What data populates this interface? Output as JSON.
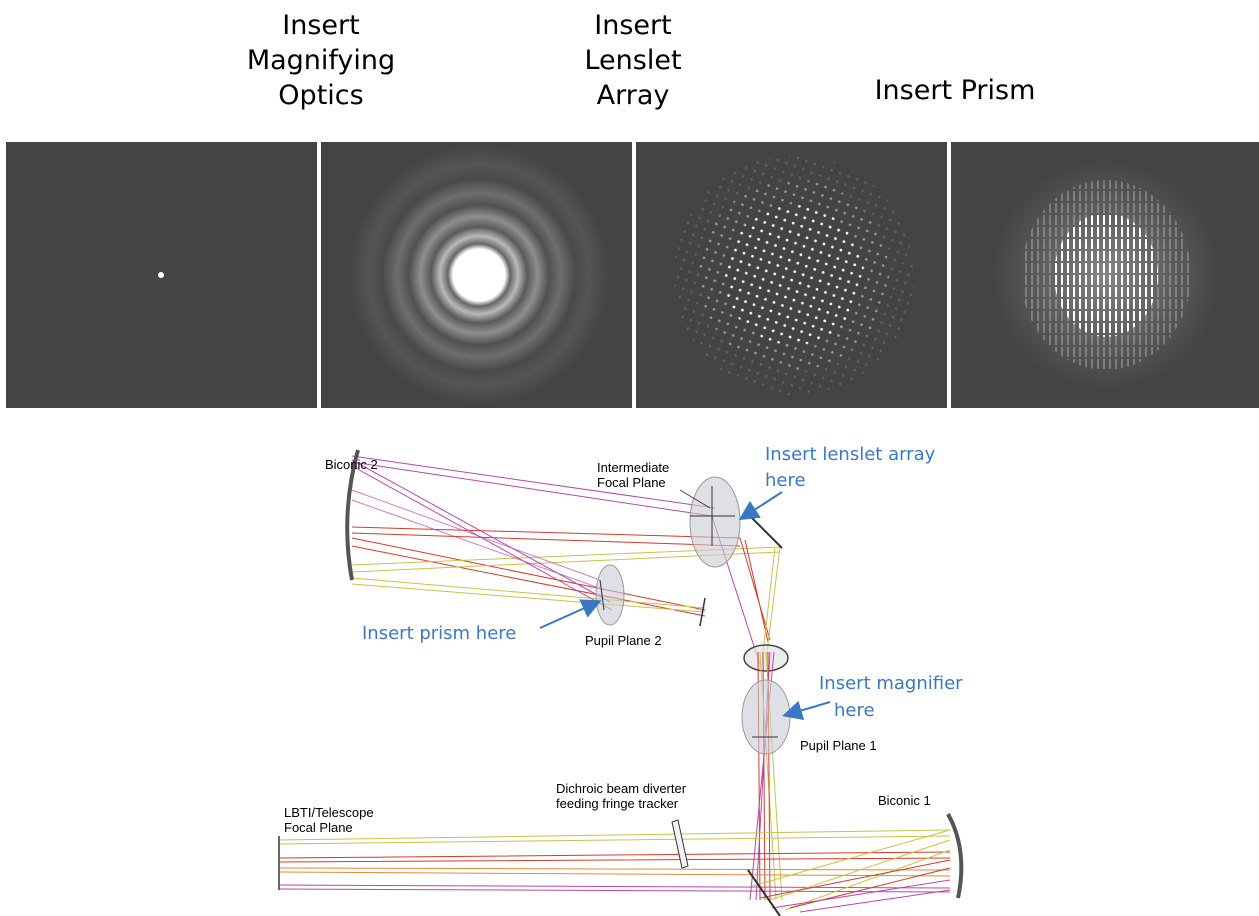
{
  "headings": {
    "magnifier": "Insert\nMagnifying\nOptics",
    "lenslet": "Insert\nLenslet\nArray",
    "prism": "Insert Prism"
  },
  "panels": [
    {
      "id": "point-source"
    },
    {
      "id": "airy-pattern"
    },
    {
      "id": "lenslet-spots"
    },
    {
      "id": "dispersed-spectra"
    }
  ],
  "diagram": {
    "labels": {
      "biconic2": "Biconic 2",
      "intermediate1": "Intermediate",
      "intermediate2": "Focal Plane",
      "pupil2": "Pupil Plane 2",
      "pupil1": "Pupil Plane 1",
      "biconic1": "Biconic 1",
      "lbti1": "LBTI/Telescope",
      "lbti2": "Focal Plane",
      "dichroic1": "Dichroic beam diverter",
      "dichroic2": "feeding fringe tracker"
    },
    "notes": {
      "lenslet1": "Insert lenslet array",
      "lenslet2": "here",
      "prism": "Insert prism here",
      "magnifier1": "Insert magnifier",
      "magnifier2": "here"
    },
    "colors": {
      "note": "#3a78c4",
      "ray_red": "#d23b2a",
      "ray_pink": "#b44aa8",
      "ray_yellow": "#c9c24a",
      "panel_bg": "#444444"
    }
  }
}
